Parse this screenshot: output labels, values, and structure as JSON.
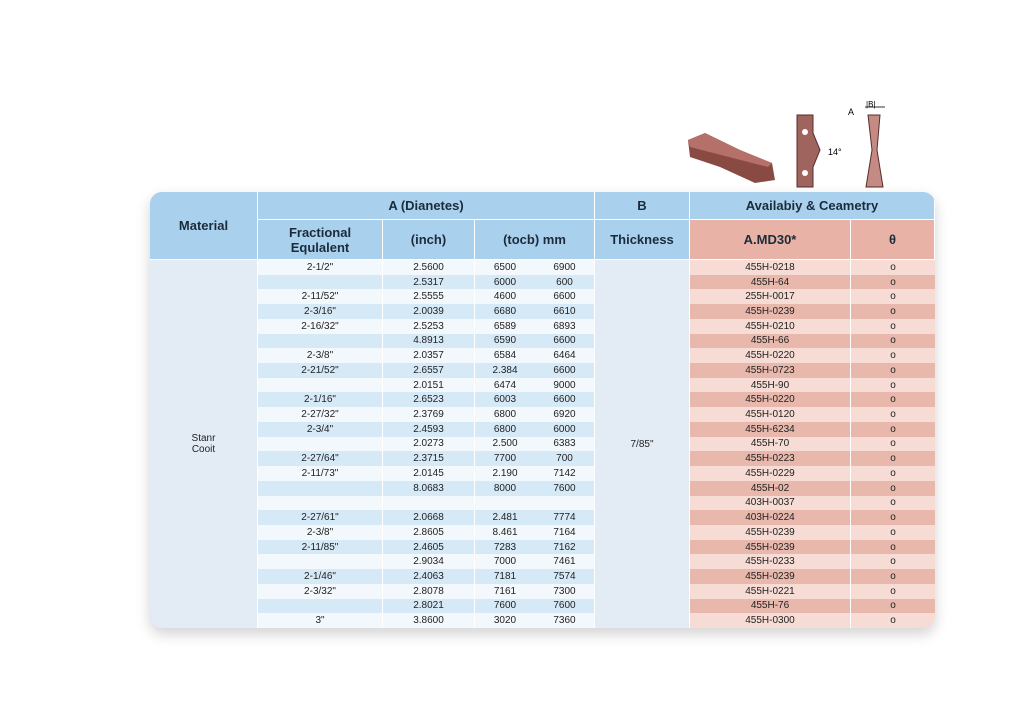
{
  "header": {
    "material": "Material",
    "diameter": "A (Dianetes)",
    "b": "B",
    "availability": "Availabiy & Ceametry",
    "fractional": "Fractional Equlalent",
    "inch": "(inch)",
    "inch_mm": "(tocb)  mm",
    "thickness": "Thickness",
    "code": "A.MD30*",
    "geometry": "θ"
  },
  "material_label": "Stanr Cooit",
  "thickness_value": "7/85\"",
  "rows": [
    [
      "2-1/2\"",
      "2.5600",
      "6500",
      "6900",
      "455H-0218",
      "o"
    ],
    [
      "",
      "2.5317",
      "6000",
      "600",
      "455H-64",
      "o"
    ],
    [
      "2-11/52\"",
      "2.5555",
      "4600",
      "6600",
      "255H-0017",
      "o"
    ],
    [
      "2-3/16\"",
      "2.0039",
      "6680",
      "6610",
      "455H-0239",
      "o"
    ],
    [
      "2-16/32\"",
      "2.5253",
      "6589",
      "6893",
      "455H-0210",
      "o"
    ],
    [
      "",
      "4.8913",
      "6590",
      "6600",
      "455H-66",
      "o"
    ],
    [
      "2-3/8\"",
      "2.0357",
      "6584",
      "6464",
      "455H-0220",
      "o"
    ],
    [
      "2-21/52\"",
      "2.6557",
      "2.384",
      "6600",
      "455H-0723",
      "o"
    ],
    [
      "",
      "2.0151",
      "6474",
      "9000",
      "455H-90",
      "o"
    ],
    [
      "2-1/16\"",
      "2.6523",
      "6003",
      "6600",
      "455H-0220",
      "o"
    ],
    [
      "2-27/32\"",
      "2.3769",
      "6800",
      "6920",
      "455H-0120",
      "o"
    ],
    [
      "2-3/4\"",
      "2.4593",
      "6800",
      "6000",
      "455H-6234",
      "o"
    ],
    [
      "",
      "2.0273",
      "2.500",
      "6383",
      "455H-70",
      "o"
    ],
    [
      "2-27/64\"",
      "2.3715",
      "7700",
      "700",
      "455H-0223",
      "o"
    ],
    [
      "2-11/73\"",
      "2.0145",
      "2.190",
      "7142",
      "455H-0229",
      "o"
    ],
    [
      "",
      "8.0683",
      "8000",
      "7600",
      "455H-02",
      "o"
    ],
    [
      "",
      "",
      "",
      "",
      "403H-0037",
      "o"
    ],
    [
      "2-27/61\"",
      "2.0668",
      "2.481",
      "7774",
      "403H-0224",
      "o"
    ],
    [
      "2-3/8\"",
      "2.8605",
      "8.461",
      "7164",
      "455H-0239",
      "o"
    ],
    [
      "2-11/85\"",
      "2.4605",
      "7283",
      "7162",
      "455H-0239",
      "o"
    ],
    [
      "",
      "2.9034",
      "7000",
      "7461",
      "455H-0233",
      "o"
    ],
    [
      "2-1/46\"",
      "2.4063",
      "7181",
      "7574",
      "455H-0239",
      "o"
    ],
    [
      "2-3/32\"",
      "2.8078",
      "7161",
      "7300",
      "455H-0221",
      "o"
    ],
    [
      "",
      "2.8021",
      "7600",
      "7600",
      "455H-76",
      "o"
    ],
    [
      "3\"",
      "3.8600",
      "3020",
      "7360",
      "455H-0300",
      "o"
    ]
  ],
  "diagram": {
    "a_label": "A",
    "b_label": "|B|",
    "angle_label": "14°"
  }
}
